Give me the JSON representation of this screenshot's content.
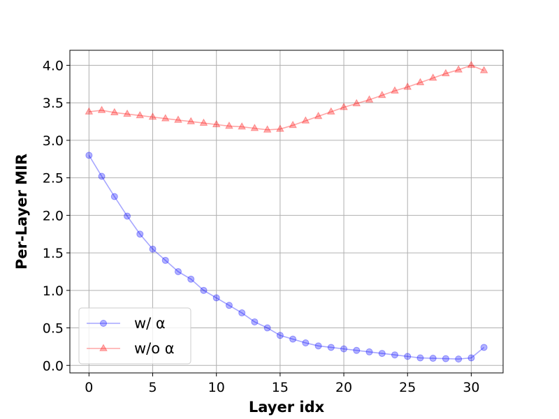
{
  "chart_data": {
    "type": "line",
    "title": "",
    "xlabel": "Layer idx",
    "ylabel": "Per-Layer MIR",
    "xlim": [
      -1.5,
      32.5
    ],
    "ylim": [
      -0.1,
      4.2
    ],
    "xticks": [
      0,
      5,
      10,
      15,
      20,
      25,
      30
    ],
    "yticks": [
      0.0,
      0.5,
      1.0,
      1.5,
      2.0,
      2.5,
      3.0,
      3.5,
      4.0
    ],
    "grid": true,
    "legend_position": "lower-left",
    "x": [
      0,
      1,
      2,
      3,
      4,
      5,
      6,
      7,
      8,
      9,
      10,
      11,
      12,
      13,
      14,
      15,
      16,
      17,
      18,
      19,
      20,
      21,
      22,
      23,
      24,
      25,
      26,
      27,
      28,
      29,
      30,
      31
    ],
    "series": [
      {
        "name": "w/ α",
        "color": "#0000ff",
        "marker": "circle",
        "values": [
          2.8,
          2.52,
          2.25,
          1.99,
          1.75,
          1.55,
          1.4,
          1.25,
          1.15,
          1.0,
          0.9,
          0.8,
          0.7,
          0.58,
          0.5,
          0.4,
          0.35,
          0.3,
          0.26,
          0.24,
          0.22,
          0.2,
          0.18,
          0.16,
          0.14,
          0.12,
          0.1,
          0.095,
          0.09,
          0.085,
          0.1,
          0.24
        ]
      },
      {
        "name": "w/o α",
        "color": "#ff0000",
        "marker": "triangle",
        "values": [
          3.38,
          3.4,
          3.37,
          3.35,
          3.33,
          3.31,
          3.29,
          3.27,
          3.25,
          3.23,
          3.21,
          3.19,
          3.18,
          3.16,
          3.14,
          3.15,
          3.2,
          3.26,
          3.32,
          3.38,
          3.44,
          3.49,
          3.54,
          3.6,
          3.66,
          3.71,
          3.77,
          3.83,
          3.89,
          3.94,
          4.0,
          3.93
        ]
      }
    ]
  }
}
